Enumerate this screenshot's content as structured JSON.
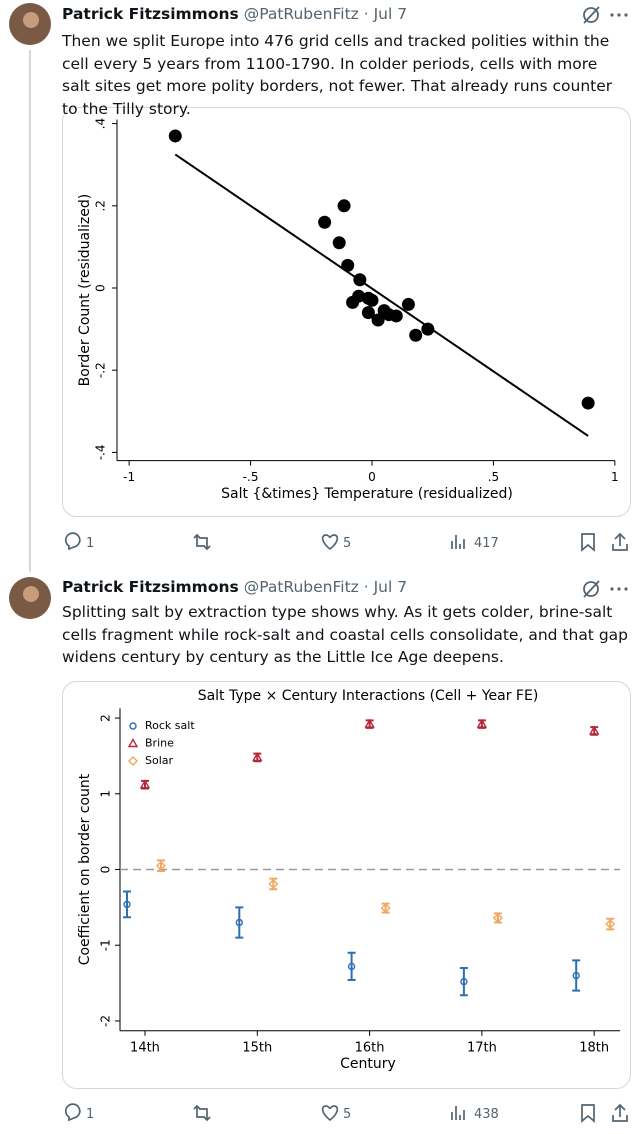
{
  "tweets": [
    {
      "author": "Patrick Fitzsimmons",
      "meta": "@PatRubenFitz · Jul 7",
      "text": "Then we split Europe into 476 grid cells and tracked polities within the cell every 5 years from 1100-1790. In colder periods, cells with more salt sites get more polity borders, not fewer. That already runs counter to the Tilly story.",
      "chart_data": {
        "type": "scatter",
        "x_label": "Salt {&times} Temperature (residualized)",
        "y_label": "Border Count (residualized)",
        "x": [
          -0.81,
          -0.115,
          -0.195,
          -0.135,
          -0.1,
          -0.05,
          -0.055,
          -0.08,
          -0.015,
          0.0,
          -0.015,
          0.025,
          0.05,
          0.07,
          0.1,
          0.15,
          0.18,
          0.23,
          0.89
        ],
        "y": [
          0.37,
          0.2,
          0.16,
          0.11,
          0.055,
          0.02,
          -0.02,
          -0.035,
          -0.025,
          -0.03,
          -0.06,
          -0.078,
          -0.055,
          -0.065,
          -0.068,
          -0.04,
          -0.115,
          -0.1,
          -0.28
        ],
        "color": "#000000",
        "fit_line": {
          "x": [
            -0.81,
            0.89
          ],
          "y": [
            0.325,
            -0.36
          ]
        },
        "xlim": [
          -1.05,
          1.05
        ],
        "xticks": [
          -1,
          {
            "value": -0.5,
            "label": "-.5"
          },
          0,
          {
            "value": 0.5,
            "label": ".5"
          },
          1
        ],
        "ylim": [
          -0.42,
          0.41
        ],
        "yticks": [
          {
            "value": 0.4,
            "label": ".4"
          },
          {
            "value": 0.2,
            "label": ".2"
          },
          0,
          {
            "value": -0.2,
            "label": "-.2"
          },
          {
            "value": -0.4,
            "label": "-.4"
          }
        ],
        "grid": false
      },
      "stats": {
        "replies": 1,
        "likes": 5,
        "views": 417
      }
    },
    {
      "author": "Patrick Fitzsimmons",
      "meta": "@PatRubenFitz · Jul 7",
      "text": "Splitting salt by extraction type shows why. As it gets colder, brine-salt cells fragment while rock-salt and coastal cells consolidate, and that gap widens century by century as the Little Ice Age deepens.",
      "chart_data": {
        "type": "errorbar",
        "title": "Salt Type × Century Interactions (Cell + Year FE)",
        "x_label": "Century",
        "y_label": "Coefficient on border count",
        "categories": [
          "14th",
          "15th",
          "16th",
          "17th",
          "18th"
        ],
        "series": [
          {
            "name": "Rock salt",
            "color": "#2f6db5",
            "marker": "circle",
            "values": [
              -0.46,
              -0.7,
              -1.28,
              -1.48,
              -1.4
            ],
            "errors": [
              0.17,
              0.2,
              0.18,
              0.18,
              0.2
            ]
          },
          {
            "name": "Brine",
            "color": "#b5273a",
            "marker": "triangle",
            "values": [
              1.12,
              1.48,
              1.92,
              1.92,
              1.83
            ],
            "errors": [
              0.05,
              0.05,
              0.05,
              0.05,
              0.05
            ]
          },
          {
            "name": "Solar",
            "color": "#f0a860",
            "marker": "diamond",
            "values": [
              0.05,
              -0.19,
              -0.51,
              -0.64,
              -0.72
            ],
            "errors": [
              0.07,
              0.07,
              0.06,
              0.06,
              0.07
            ]
          }
        ],
        "ylim": [
          -2.13,
          2.13
        ],
        "yticks": [
          2,
          1,
          0,
          -1,
          -2
        ],
        "reference_line": 0,
        "legend": "upper left",
        "grid": false
      },
      "stats": {
        "replies": 1,
        "likes": 5,
        "views": 438
      }
    }
  ]
}
